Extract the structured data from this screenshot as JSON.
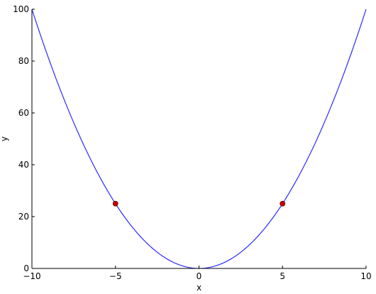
{
  "chart_data": {
    "type": "line",
    "title": "",
    "xlabel": "x",
    "ylabel": "y",
    "xlim": [
      -10,
      10
    ],
    "ylim": [
      0,
      100
    ],
    "x_ticks": [
      -10,
      -5,
      0,
      5,
      10
    ],
    "x_tick_labels": [
      "−10",
      "−5",
      "0",
      "5",
      "10"
    ],
    "y_ticks": [
      0,
      20,
      40,
      60,
      80,
      100
    ],
    "y_tick_labels": [
      "0",
      "20",
      "40",
      "60",
      "80",
      "100"
    ],
    "grid": false,
    "series": [
      {
        "kind": "line",
        "color": "#2b2bff",
        "x": [
          -10,
          -9,
          -8,
          -7,
          -6,
          -5,
          -4,
          -3,
          -2,
          -1,
          0,
          1,
          2,
          3,
          4,
          5,
          6,
          7,
          8,
          9,
          10
        ],
        "y": [
          100,
          81,
          64,
          49,
          36,
          25,
          16,
          9,
          4,
          1,
          0,
          1,
          4,
          9,
          16,
          25,
          36,
          49,
          64,
          81,
          100
        ]
      },
      {
        "kind": "scatter",
        "color": "#cc0000",
        "x": [
          -5,
          5
        ],
        "y": [
          25,
          25
        ]
      }
    ]
  }
}
